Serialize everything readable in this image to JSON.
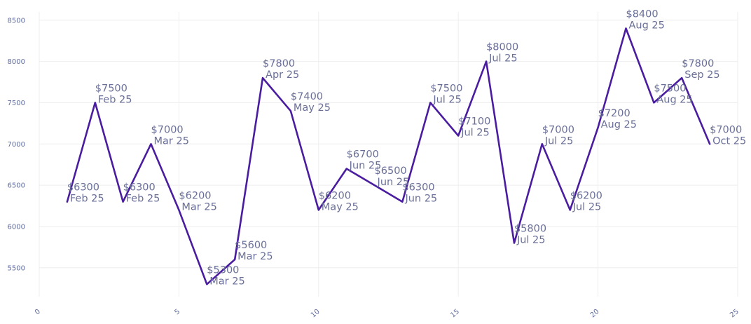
{
  "chart_data": {
    "type": "line",
    "x": [
      1,
      2,
      3,
      4,
      5,
      6,
      7,
      8,
      9,
      10,
      11,
      12,
      13,
      14,
      15,
      16,
      17,
      18,
      19,
      20,
      21,
      22,
      23,
      24
    ],
    "values": [
      6300,
      7500,
      6300,
      7000,
      6200,
      5300,
      5600,
      7800,
      7400,
      6200,
      6700,
      6500,
      6300,
      7500,
      7100,
      8000,
      5800,
      7000,
      6200,
      7200,
      8400,
      7500,
      7800,
      7000
    ],
    "labels": [
      [
        "$6300",
        "Feb 25"
      ],
      [
        "$7500",
        "Feb 25"
      ],
      [
        "$6300",
        "Feb 25"
      ],
      [
        "$7000",
        "Mar 25"
      ],
      [
        "$6200",
        "Mar 25"
      ],
      [
        "$5300",
        "Mar 25"
      ],
      [
        "$5600",
        "Mar 25"
      ],
      [
        "$7800",
        "Apr 25"
      ],
      [
        "$7400",
        "May 25"
      ],
      [
        "$6200",
        "May 25"
      ],
      [
        "$6700",
        "Jun 25"
      ],
      [
        "$6500",
        "Jun 25"
      ],
      [
        "$6300",
        "Jun 25"
      ],
      [
        "$7500",
        "Jul 25"
      ],
      [
        "$7100",
        "Jul 25"
      ],
      [
        "$8000",
        "Jul 25"
      ],
      [
        "$5800",
        "Jul 25"
      ],
      [
        "$7000",
        "Jul 25"
      ],
      [
        "$6200",
        "Jul 25"
      ],
      [
        "$7200",
        "Aug 25"
      ],
      [
        "$8400",
        "Aug 25"
      ],
      [
        "$7500",
        "Aug 25"
      ],
      [
        "$7800",
        "Sep 25"
      ],
      [
        "$7000",
        "Oct 25"
      ]
    ],
    "xlim": [
      0,
      25
    ],
    "ylim": [
      5150,
      8600
    ],
    "x_ticks": [
      "0",
      "5",
      "10",
      "15",
      "20",
      "25"
    ],
    "y_ticks": [
      "5500",
      "6000",
      "6500",
      "7000",
      "7500",
      "8000",
      "8500"
    ],
    "grid": true,
    "line_color": "#4a1da0",
    "label_color": "#6a6f98",
    "tick_color": "#5f6b9c"
  }
}
